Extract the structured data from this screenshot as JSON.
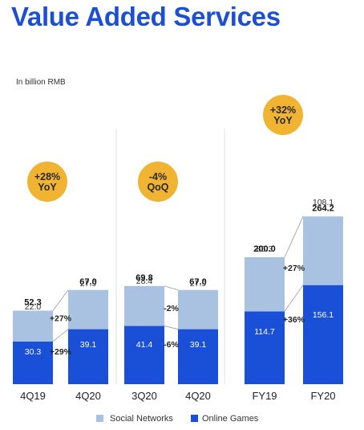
{
  "title": "Value Added Services",
  "colors": {
    "social": "#a9c2e2",
    "games": "#1a4fd8",
    "badge": "#f0b432",
    "title": "#1b4fd6"
  },
  "chart_data": {
    "type": "bar",
    "stacked": true,
    "unit_note": "In billion RMB",
    "categories": [
      "4Q19",
      "4Q20",
      "3Q20",
      "4Q20",
      "FY19",
      "FY20"
    ],
    "series": [
      {
        "name": "Online Games",
        "values": [
          30.3,
          39.1,
          41.4,
          39.1,
          114.7,
          156.1
        ]
      },
      {
        "name": "Social Networks",
        "values": [
          22.0,
          27.9,
          28.4,
          27.9,
          85.3,
          108.1
        ]
      }
    ],
    "totals": [
      "52.3",
      "67.0",
      "69.8",
      "67.0",
      "200.0",
      "264.2"
    ],
    "games_labels": [
      "30.3",
      "39.1",
      "41.4",
      "39.1",
      "114.7",
      "156.1"
    ],
    "social_labels": [
      "22.0",
      "27.9",
      "28.4",
      "27.9",
      "85.3",
      "108.1"
    ],
    "legend": {
      "placement": "bottom-center",
      "items": [
        "Social Networks",
        "Online Games"
      ]
    },
    "groups": [
      {
        "bars": [
          0,
          1
        ],
        "badge": [
          "+28%",
          "YoY"
        ],
        "social_change": "+27%",
        "games_change": "+29%"
      },
      {
        "bars": [
          2,
          3
        ],
        "badge": [
          "-4%",
          "QoQ"
        ],
        "social_change": "-2%",
        "games_change": "-6%"
      },
      {
        "bars": [
          4,
          5
        ],
        "badge": [
          "+32%",
          "YoY"
        ],
        "social_change": "+27%",
        "games_change": "+36%"
      }
    ]
  }
}
